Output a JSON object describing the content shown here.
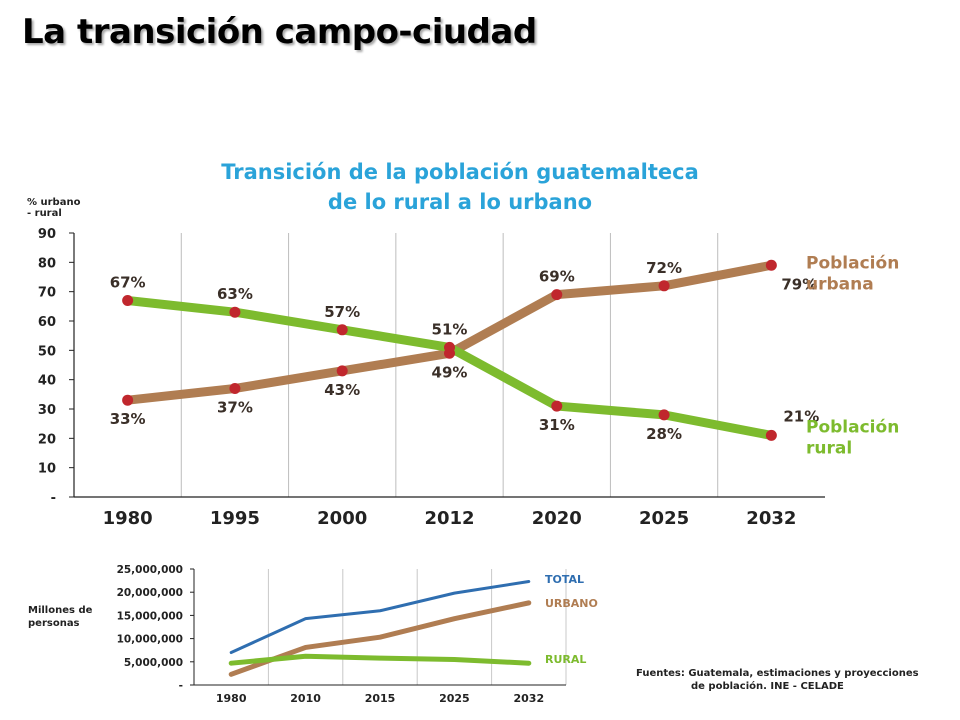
{
  "slide": {
    "title": "La transición campo-ciudad"
  },
  "source": {
    "line1": "Fuentes: Guatemala, estimaciones y proyecciones",
    "line2": "de población.  INE - CELADE"
  },
  "colors": {
    "urban": "#b07d52",
    "rural": "#7dbb2e",
    "total": "#2f6eb0",
    "marker": "#c0272d",
    "title": "#2aa3d9"
  },
  "chart_data": [
    {
      "type": "line",
      "title_line1": "Transición de la población guatemalteca",
      "title_line2": "de lo rural a lo urbano",
      "ylabel": "% urbano\n- rural",
      "categories": [
        "1980",
        "1995",
        "2000",
        "2012",
        "2020",
        "2025",
        "2032"
      ],
      "yticks": [
        "90",
        "80",
        "70",
        "60",
        "50",
        "40",
        "30",
        "20",
        "10",
        "-"
      ],
      "ylim": [
        0,
        90
      ],
      "grid": "vertical",
      "series": [
        {
          "name_line1": "Población",
          "name_line2": "urbana",
          "values": [
            33,
            37,
            43,
            49,
            69,
            72,
            79
          ],
          "labels": [
            "33%",
            "37%",
            "43%",
            "49%",
            "69%",
            "72%",
            "79%"
          ]
        },
        {
          "name_line1": "Población",
          "name_line2": "rural",
          "values": [
            67,
            63,
            57,
            51,
            31,
            28,
            21
          ],
          "labels": [
            "67%",
            "63%",
            "57%",
            "51%",
            "31%",
            "28%",
            "21%"
          ]
        }
      ]
    },
    {
      "type": "line",
      "ylabel": "Millones de\npersonas",
      "categories": [
        "1980",
        "2010",
        "2015",
        "2025",
        "2032"
      ],
      "yticks": [
        "25,000,000",
        "20,000,000",
        "15,000,000",
        "10,000,000",
        "5,000,000",
        "-"
      ],
      "ylim": [
        0,
        25000000
      ],
      "grid": "vertical",
      "series": [
        {
          "name": "TOTAL",
          "values": [
            7000000,
            14300000,
            16000000,
            19800000,
            22300000
          ]
        },
        {
          "name": "URBANO",
          "values": [
            2300000,
            8100000,
            10300000,
            14300000,
            17700000
          ]
        },
        {
          "name": "RURAL",
          "values": [
            4700000,
            6200000,
            5800000,
            5500000,
            4700000
          ]
        }
      ]
    }
  ]
}
